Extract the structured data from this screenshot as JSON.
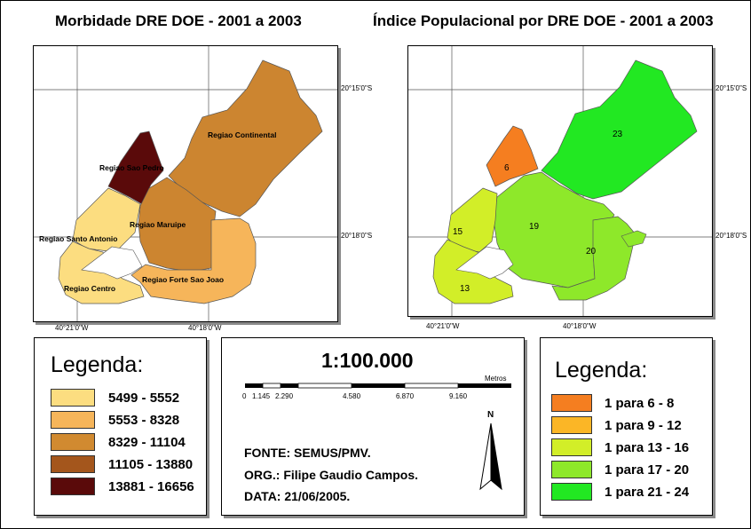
{
  "left_map": {
    "title": "Morbidade DRE DOE - 2001 a 2003",
    "coords": {
      "lat1": "20°15'0\"S",
      "lat2": "20°18'0\"S",
      "lon1": "40°21'0\"W",
      "lon2": "40°18'0\"W"
    },
    "regions": [
      {
        "name": "Regiao Continental",
        "color": "#cc8530",
        "class": "8329 - 11104"
      },
      {
        "name": "Regiao Sao Pedro",
        "color": "#5a0a0a",
        "class": "13881 - 16656"
      },
      {
        "name": "Regiao Maruipe",
        "color": "#cc8530",
        "class": "8329 - 11104"
      },
      {
        "name": "Regiao Santo Antonio",
        "color": "#fcdd80",
        "class": "5499 - 5552"
      },
      {
        "name": "Regiao Centro",
        "color": "#fcdd80",
        "class": "5499 - 5552"
      },
      {
        "name": "Regiao Forte Sao Joao",
        "color": "#f6b55a",
        "class": "5553 - 8328"
      }
    ]
  },
  "right_map": {
    "title": "Índice Populacional por DRE DOE - 2001 a 2003",
    "coords": {
      "lat1": "20°15'0\"S",
      "lat2": "20°18'0\"S",
      "lon1": "40°21'0\"W",
      "lon2": "40°18'0\"W"
    },
    "regions": [
      {
        "label": "23",
        "color": "#22e822"
      },
      {
        "label": "6",
        "color": "#f57e20"
      },
      {
        "label": "19",
        "color": "#8ee82a"
      },
      {
        "label": "20",
        "color": "#8ee82a"
      },
      {
        "label": "15",
        "color": "#d2ee28"
      },
      {
        "label": "13",
        "color": "#d2ee28"
      }
    ]
  },
  "legend_left": {
    "title": "Legenda:",
    "items": [
      {
        "label": "5499 - 5552",
        "color": "#fcdd80"
      },
      {
        "label": "5553 - 8328",
        "color": "#f6b55a"
      },
      {
        "label": "8329 - 11104",
        "color": "#d18a30"
      },
      {
        "label": "11105 - 13880",
        "color": "#a4561c"
      },
      {
        "label": "13881 - 16656",
        "color": "#5a0a0a"
      }
    ]
  },
  "legend_right": {
    "title": "Legenda:",
    "items": [
      {
        "label": "1 para 6 - 8",
        "color": "#f57e20"
      },
      {
        "label": "1 para 9 - 12",
        "color": "#fbb626"
      },
      {
        "label": "1 para 13 - 16",
        "color": "#d2ee28"
      },
      {
        "label": "1 para 17 - 20",
        "color": "#8ee82a"
      },
      {
        "label": "1 para 21 - 24",
        "color": "#22e822"
      }
    ]
  },
  "scale": {
    "title": "1:100.000",
    "unit": "Metros",
    "ticks": [
      "0",
      "1.145",
      "2.290",
      "4.580",
      "6.870",
      "9.160"
    ]
  },
  "north_label": "N",
  "credits": {
    "fonte": "FONTE: SEMUS/PMV.",
    "org": "ORG.: Filipe Gaudio Campos.",
    "data": "DATA: 21/06/2005."
  }
}
